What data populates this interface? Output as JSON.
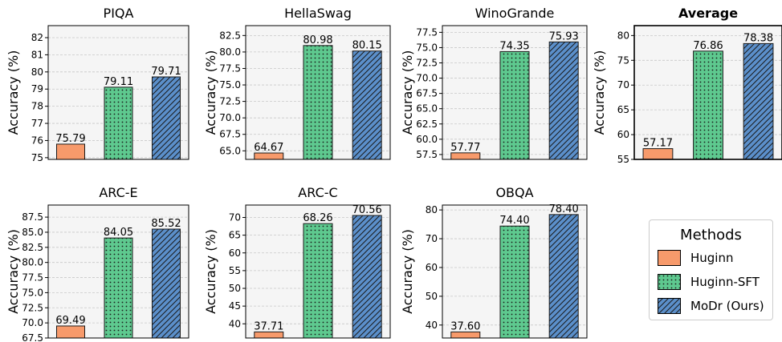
{
  "chart_data": [
    {
      "type": "bar",
      "title": "PIQA",
      "title_bold": false,
      "ylabel": "Accuracy (%)",
      "categories": [
        "Huginn",
        "Huginn-SFT",
        "MoDr (Ours)"
      ],
      "values": [
        75.79,
        79.11,
        79.71
      ],
      "value_labels": [
        "75.79",
        "79.11",
        "79.71"
      ],
      "ylim": [
        74.9,
        82.7
      ],
      "yticks": [
        75,
        76,
        77,
        78,
        79,
        80,
        81,
        82
      ],
      "ytick_labels": [
        "75",
        "76",
        "77",
        "78",
        "79",
        "80",
        "81",
        "82"
      ],
      "grid": true
    },
    {
      "type": "bar",
      "title": "HellaSwag",
      "title_bold": false,
      "ylabel": "Accuracy (%)",
      "categories": [
        "Huginn",
        "Huginn-SFT",
        "MoDr (Ours)"
      ],
      "values": [
        64.67,
        80.98,
        80.15
      ],
      "value_labels": [
        "64.67",
        "80.98",
        "80.15"
      ],
      "ylim": [
        63.7,
        84.0
      ],
      "yticks": [
        65.0,
        67.5,
        70.0,
        72.5,
        75.0,
        77.5,
        80.0,
        82.5
      ],
      "ytick_labels": [
        "65.0",
        "67.5",
        "70.0",
        "72.5",
        "75.0",
        "77.5",
        "80.0",
        "82.5"
      ],
      "grid": true
    },
    {
      "type": "bar",
      "title": "WinoGrande",
      "title_bold": false,
      "ylabel": "Accuracy (%)",
      "categories": [
        "Huginn",
        "Huginn-SFT",
        "MoDr (Ours)"
      ],
      "values": [
        57.77,
        74.35,
        75.93
      ],
      "value_labels": [
        "57.77",
        "74.35",
        "75.93"
      ],
      "ylim": [
        56.7,
        78.6
      ],
      "yticks": [
        57.5,
        60.0,
        62.5,
        65.0,
        67.5,
        70.0,
        72.5,
        75.0,
        77.5
      ],
      "ytick_labels": [
        "57.5",
        "60.0",
        "62.5",
        "65.0",
        "67.5",
        "70.0",
        "72.5",
        "75.0",
        "77.5"
      ],
      "grid": true
    },
    {
      "type": "bar",
      "title": "Average",
      "title_bold": true,
      "ylabel": "Accuracy (%)",
      "categories": [
        "Huginn",
        "Huginn-SFT",
        "MoDr (Ours)"
      ],
      "values": [
        57.17,
        76.86,
        78.38
      ],
      "value_labels": [
        "57.17",
        "76.86",
        "78.38"
      ],
      "ylim": [
        55,
        82
      ],
      "yticks": [
        55,
        60,
        65,
        70,
        75,
        80
      ],
      "ytick_labels": [
        "55",
        "60",
        "65",
        "70",
        "75",
        "80"
      ],
      "grid": true
    },
    {
      "type": "bar",
      "title": "ARC-E",
      "title_bold": false,
      "ylabel": "Accuracy (%)",
      "categories": [
        "Huginn",
        "Huginn-SFT",
        "MoDr (Ours)"
      ],
      "values": [
        69.49,
        84.05,
        85.52
      ],
      "value_labels": [
        "69.49",
        "84.05",
        "85.52"
      ],
      "ylim": [
        67.5,
        89.5
      ],
      "yticks": [
        67.5,
        70.0,
        72.5,
        75.0,
        77.5,
        80.0,
        82.5,
        85.0,
        87.5
      ],
      "ytick_labels": [
        "67.5",
        "70.0",
        "72.5",
        "75.0",
        "77.5",
        "80.0",
        "82.5",
        "85.0",
        "87.5"
      ],
      "grid": true
    },
    {
      "type": "bar",
      "title": "ARC-C",
      "title_bold": false,
      "ylabel": "Accuracy (%)",
      "categories": [
        "Huginn",
        "Huginn-SFT",
        "MoDr (Ours)"
      ],
      "values": [
        37.71,
        68.26,
        70.56
      ],
      "value_labels": [
        "37.71",
        "68.26",
        "70.56"
      ],
      "ylim": [
        36.0,
        73.5
      ],
      "yticks": [
        40,
        45,
        50,
        55,
        60,
        65,
        70
      ],
      "ytick_labels": [
        "40",
        "45",
        "50",
        "55",
        "60",
        "65",
        "70"
      ],
      "grid": true
    },
    {
      "type": "bar",
      "title": "OBQA",
      "title_bold": false,
      "ylabel": "Accuracy (%)",
      "categories": [
        "Huginn",
        "Huginn-SFT",
        "MoDr (Ours)"
      ],
      "values": [
        37.6,
        74.4,
        78.4
      ],
      "value_labels": [
        "37.60",
        "74.40",
        "78.40"
      ],
      "ylim": [
        35.5,
        81.7
      ],
      "yticks": [
        40,
        50,
        60,
        70,
        80
      ],
      "ytick_labels": [
        "40",
        "50",
        "60",
        "70",
        "80"
      ],
      "grid": true
    }
  ],
  "legend": {
    "title": "Methods",
    "placement": "bottom-right",
    "items": [
      {
        "label": "Huginn",
        "color": "#f79a6b",
        "pattern": "solid"
      },
      {
        "label": "Huginn-SFT",
        "color": "#5ec98f",
        "pattern": "dots"
      },
      {
        "label": "MoDr (Ours)",
        "color": "#5b8fca",
        "pattern": "hatch"
      }
    ]
  },
  "colors": {
    "Huginn": "#f79a6b",
    "Huginn-SFT": "#5ec98f",
    "MoDr (Ours)": "#5b8fca",
    "plot_bg": "#f5f5f5",
    "grid": "#c8c8c8"
  }
}
